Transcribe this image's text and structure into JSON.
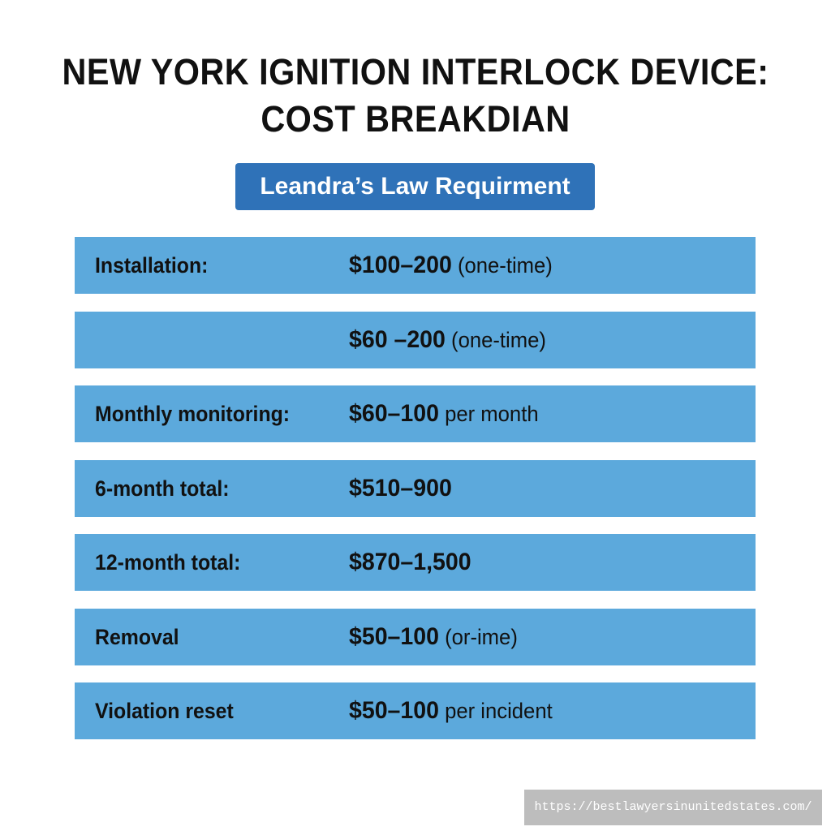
{
  "title": {
    "line1": "NEW YORK IGNITION INTERLOCK DEVICE:",
    "line2": "COST BREAKDIAN"
  },
  "badge": "Leandra’s Law Requirment",
  "rows": [
    {
      "label": "Installation:",
      "amount": "$100–200",
      "note": "(one-time)"
    },
    {
      "label": "",
      "amount": "$60 –200",
      "note": "(one-time)"
    },
    {
      "label": "Monthly monitoring:",
      "amount": "$60–100",
      "note": "per month"
    },
    {
      "label": "6-month total:",
      "amount": "$510–900",
      "note": ""
    },
    {
      "label": "12-month total:",
      "amount": "$870–1,500",
      "note": ""
    },
    {
      "label": "Removal",
      "amount": "$50–100",
      "note": "(or-ime)"
    },
    {
      "label": "Violation reset",
      "amount": "$50–100",
      "note": "per incident"
    }
  ],
  "watermark": "https://bestlawyersinunitedstates.com/",
  "colors": {
    "badge": "#2f72b8",
    "row": "#5ca9dc",
    "watermark": "#bdbdbd"
  }
}
